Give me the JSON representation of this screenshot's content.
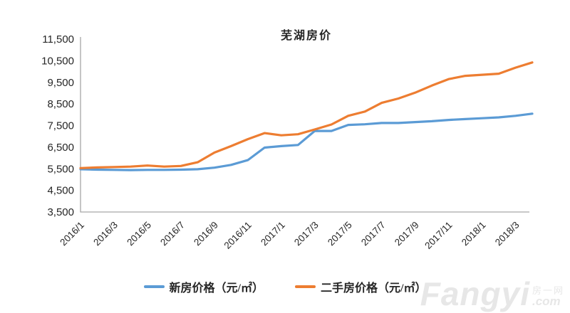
{
  "page": {
    "background": "#ffffff"
  },
  "chart_data": {
    "type": "line",
    "title": "芜湖房价",
    "xlabel": "",
    "ylabel": "",
    "grid": false,
    "legend_position": "bottom",
    "ylim": [
      3500,
      11500
    ],
    "y_ticks": [
      3500,
      4500,
      5500,
      6500,
      7500,
      8500,
      9500,
      10500,
      11500
    ],
    "y_tick_labels": [
      "3,500",
      "4,500",
      "5,500",
      "6,500",
      "7,500",
      "8,500",
      "9,500",
      "10,500",
      "11,500"
    ],
    "x_tick_labels": [
      "2016/1",
      "2016/3",
      "2016/5",
      "2016/7",
      "2016/9",
      "2016/11",
      "2017/1",
      "2017/3",
      "2017/5",
      "2017/7",
      "2017/9",
      "2017/11",
      "2018/1",
      "2018/3"
    ],
    "categories": [
      "2016/1",
      "2016/2",
      "2016/3",
      "2016/4",
      "2016/5",
      "2016/6",
      "2016/7",
      "2016/8",
      "2016/9",
      "2016/10",
      "2016/11",
      "2016/12",
      "2017/1",
      "2017/2",
      "2017/3",
      "2017/4",
      "2017/5",
      "2017/6",
      "2017/7",
      "2017/8",
      "2017/9",
      "2017/10",
      "2017/11",
      "2017/12",
      "2018/1",
      "2018/2",
      "2018/3",
      "2018/4"
    ],
    "series": [
      {
        "key": "new-house",
        "name": "新房价格（元/㎡）",
        "color": "#5B9BD5",
        "values": [
          5480,
          5460,
          5450,
          5440,
          5450,
          5450,
          5460,
          5480,
          5550,
          5680,
          5900,
          6480,
          6550,
          6600,
          7250,
          7250,
          7530,
          7560,
          7620,
          7620,
          7660,
          7700,
          7760,
          7800,
          7840,
          7880,
          7950,
          8050
        ]
      },
      {
        "key": "secondhand-house",
        "name": "二手房价格（元/㎡）",
        "color": "#ED7D31",
        "values": [
          5530,
          5560,
          5580,
          5600,
          5650,
          5600,
          5630,
          5800,
          6250,
          6550,
          6870,
          7150,
          7050,
          7100,
          7320,
          7550,
          7950,
          8150,
          8550,
          8750,
          9020,
          9350,
          9650,
          9800,
          9850,
          9900,
          10180,
          10420
        ]
      }
    ],
    "axis_color": "#A6A6A6",
    "tick_label_color": "#262626"
  },
  "watermark": {
    "main": "Fangyi",
    "side_top": "房一网",
    "side_bottom": ".com"
  }
}
